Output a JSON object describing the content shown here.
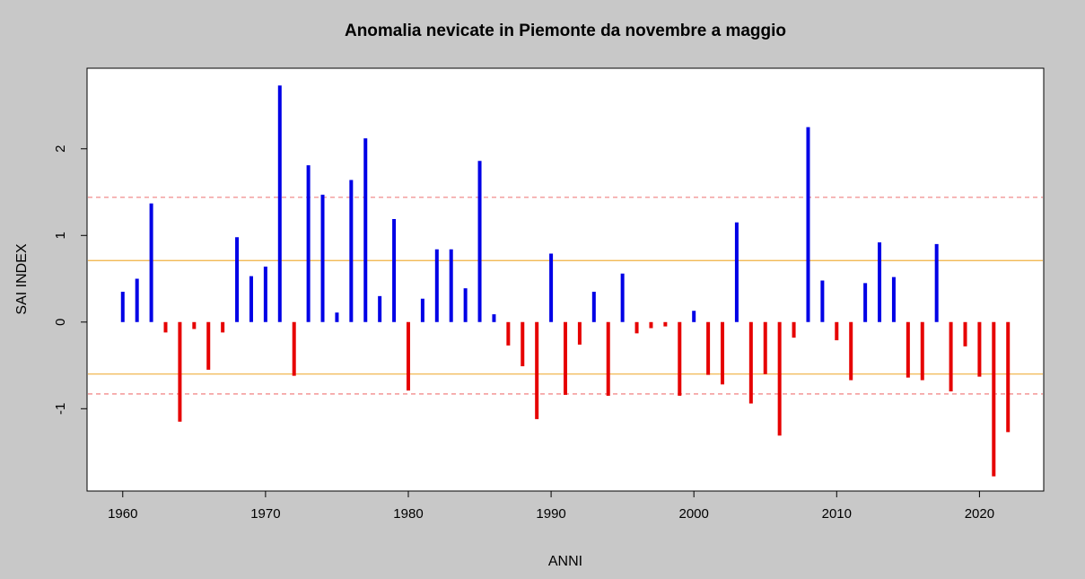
{
  "chart_data": {
    "type": "bar",
    "title": "Anomalia nevicate in Piemonte da novembre a maggio",
    "xlabel": "ANNI",
    "ylabel": "SAI INDEX",
    "xlim": [
      1957.5,
      2024.5
    ],
    "ylim": [
      -1.95,
      2.93
    ],
    "x_ticks": [
      1960,
      1970,
      1980,
      1990,
      2000,
      2010,
      2020
    ],
    "y_ticks": [
      -1,
      0,
      1,
      2
    ],
    "grid": false,
    "colors": {
      "positive": "#0000e6",
      "negative": "#e60000",
      "solid_line": "#f0b040",
      "dashed_line": "#f08080"
    },
    "reference_lines": [
      {
        "y": 1.44,
        "style": "dashed"
      },
      {
        "y": 0.71,
        "style": "solid"
      },
      {
        "y": -0.6,
        "style": "solid"
      },
      {
        "y": -0.83,
        "style": "dashed"
      }
    ],
    "x": [
      1960,
      1961,
      1962,
      1963,
      1964,
      1965,
      1966,
      1967,
      1968,
      1969,
      1970,
      1971,
      1972,
      1973,
      1974,
      1975,
      1976,
      1977,
      1978,
      1979,
      1980,
      1981,
      1982,
      1983,
      1984,
      1985,
      1986,
      1987,
      1988,
      1989,
      1990,
      1991,
      1992,
      1993,
      1994,
      1995,
      1996,
      1997,
      1998,
      1999,
      2000,
      2001,
      2002,
      2003,
      2004,
      2005,
      2006,
      2007,
      2008,
      2009,
      2010,
      2011,
      2012,
      2013,
      2014,
      2015,
      2016,
      2017,
      2018,
      2019,
      2020,
      2021,
      2022
    ],
    "values": [
      0.35,
      0.5,
      1.37,
      -0.12,
      -1.15,
      -0.08,
      -0.55,
      -0.12,
      0.98,
      0.53,
      0.64,
      2.73,
      -0.62,
      1.81,
      1.47,
      0.11,
      1.64,
      2.12,
      0.3,
      1.19,
      -0.79,
      0.27,
      0.84,
      0.84,
      0.39,
      1.86,
      0.09,
      -0.27,
      -0.51,
      -1.12,
      0.79,
      -0.84,
      -0.26,
      0.35,
      -0.85,
      0.56,
      -0.13,
      -0.07,
      -0.05,
      -0.85,
      0.13,
      -0.61,
      -0.72,
      1.15,
      -0.94,
      -0.6,
      -1.31,
      -0.18,
      2.25,
      0.48,
      -0.21,
      -0.67,
      0.45,
      0.92,
      0.52,
      -0.64,
      -0.67,
      0.9,
      -0.8,
      -0.28,
      -0.63,
      -1.78,
      -1.27
    ]
  }
}
